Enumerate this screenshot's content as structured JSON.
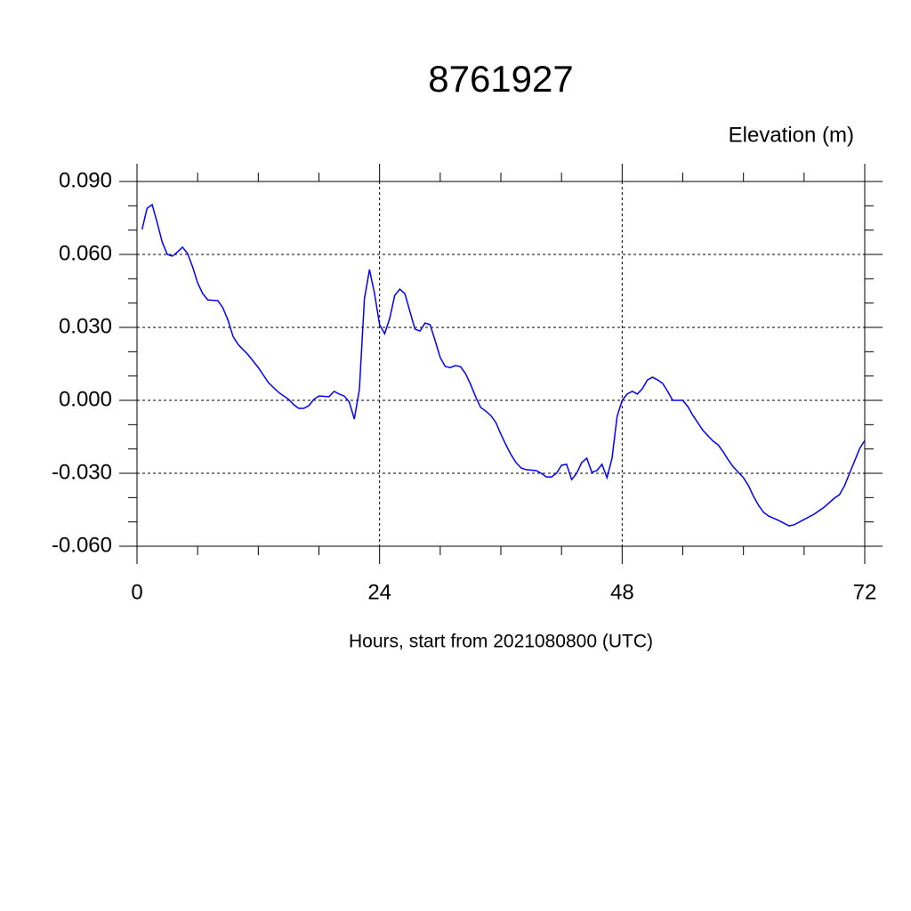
{
  "chart_data": {
    "type": "line",
    "title": "8761927",
    "ylabel": "Elevation (m)",
    "xlabel": "Hours, start from 2021080800 (UTC)",
    "xlim": [
      0,
      72
    ],
    "xticks": [
      0,
      24,
      48,
      72
    ],
    "xminorticks": [
      6,
      12,
      18,
      30,
      36,
      42,
      54,
      60,
      66
    ],
    "ylim": [
      -0.06,
      0.09
    ],
    "yticks": [
      {
        "value": -0.06,
        "label": "-0.060"
      },
      {
        "value": -0.03,
        "label": "-0.030"
      },
      {
        "value": 0,
        "label": "0.000"
      },
      {
        "value": 0.03,
        "label": "0.030"
      },
      {
        "value": 0.06,
        "label": "0.060"
      },
      {
        "value": 0.09,
        "label": "0.090"
      }
    ],
    "yminorticks": [
      -0.05,
      -0.04,
      -0.02,
      -0.01,
      0.01,
      0.02,
      0.04,
      0.05,
      0.07,
      0.08
    ],
    "grid": true,
    "series": [
      {
        "name": "Elevation",
        "color": "#0000ff",
        "x": [
          0.5,
          1,
          1.5,
          2,
          2.5,
          3,
          3.5,
          4,
          4.5,
          5,
          5.5,
          6,
          6.5,
          7,
          8,
          8.5,
          9,
          9.5,
          10,
          11,
          12,
          13,
          14,
          15,
          15.5,
          16,
          16.5,
          17,
          17.5,
          18,
          19,
          19.5,
          20,
          20.5,
          21,
          21.5,
          22,
          22.5,
          23,
          23.5,
          24,
          24.5,
          25,
          25.5,
          26,
          26.5,
          27,
          27.5,
          28,
          28.5,
          29,
          29.5,
          30,
          30.5,
          31,
          31.5,
          32,
          32.5,
          33,
          33.5,
          34,
          34.5,
          35,
          35.5,
          36,
          36.5,
          37,
          37.5,
          38,
          38.5,
          39.5,
          40,
          40.5,
          41,
          41.5,
          42,
          42.5,
          43,
          43.5,
          44,
          44.5,
          45,
          45.5,
          46,
          46.5,
          47,
          47.5,
          48,
          48.5,
          49,
          49.5,
          50,
          50.5,
          51,
          51.5,
          52,
          52.5,
          53,
          54,
          54.5,
          55,
          56,
          57,
          57.5,
          58,
          58.5,
          59,
          60,
          60.5,
          61,
          61.5,
          62,
          62.5,
          63.5,
          64,
          64.5,
          65,
          65.5,
          66,
          67,
          68,
          69,
          69.5,
          70,
          70.5,
          71,
          71.5,
          72
        ],
        "values": [
          0.0703,
          0.079,
          0.0805,
          0.073,
          0.065,
          0.06,
          0.0593,
          0.061,
          0.063,
          0.0604,
          0.0549,
          0.0483,
          0.0439,
          0.0413,
          0.041,
          0.038,
          0.033,
          0.0263,
          0.023,
          0.0187,
          0.0135,
          0.0073,
          0.0033,
          0.0004,
          -0.0018,
          -0.0033,
          -0.0033,
          -0.0022,
          0.0004,
          0.0018,
          0.0015,
          0.0037,
          0.0026,
          0.0018,
          -0.0007,
          -0.0077,
          0.0044,
          0.0417,
          0.0538,
          0.0439,
          0.0311,
          0.0274,
          0.0337,
          0.0432,
          0.0457,
          0.0439,
          0.0366,
          0.0293,
          0.0285,
          0.0318,
          0.0311,
          0.0245,
          0.0176,
          0.0139,
          0.0135,
          0.0143,
          0.0139,
          0.011,
          0.0066,
          0.0015,
          -0.0029,
          -0.0044,
          -0.0062,
          -0.0091,
          -0.0139,
          -0.0183,
          -0.0223,
          -0.0256,
          -0.0278,
          -0.0285,
          -0.0289,
          -0.03,
          -0.0315,
          -0.0315,
          -0.03,
          -0.0267,
          -0.0263,
          -0.0326,
          -0.03,
          -0.0256,
          -0.0238,
          -0.0296,
          -0.0289,
          -0.0263,
          -0.0318,
          -0.0238,
          -0.0066,
          0,
          0.0026,
          0.0037,
          0.0026,
          0.0048,
          0.0084,
          0.0095,
          0.0084,
          0.007,
          0.0037,
          0,
          0,
          -0.0026,
          -0.0062,
          -0.0124,
          -0.0168,
          -0.0183,
          -0.0212,
          -0.0245,
          -0.0274,
          -0.0318,
          -0.0351,
          -0.0395,
          -0.0432,
          -0.0461,
          -0.0476,
          -0.0494,
          -0.0505,
          -0.0516,
          -0.0512,
          -0.0501,
          -0.049,
          -0.0468,
          -0.0439,
          -0.0402,
          -0.0388,
          -0.0351,
          -0.03,
          -0.0249,
          -0.0198,
          -0.0165
        ]
      }
    ]
  }
}
